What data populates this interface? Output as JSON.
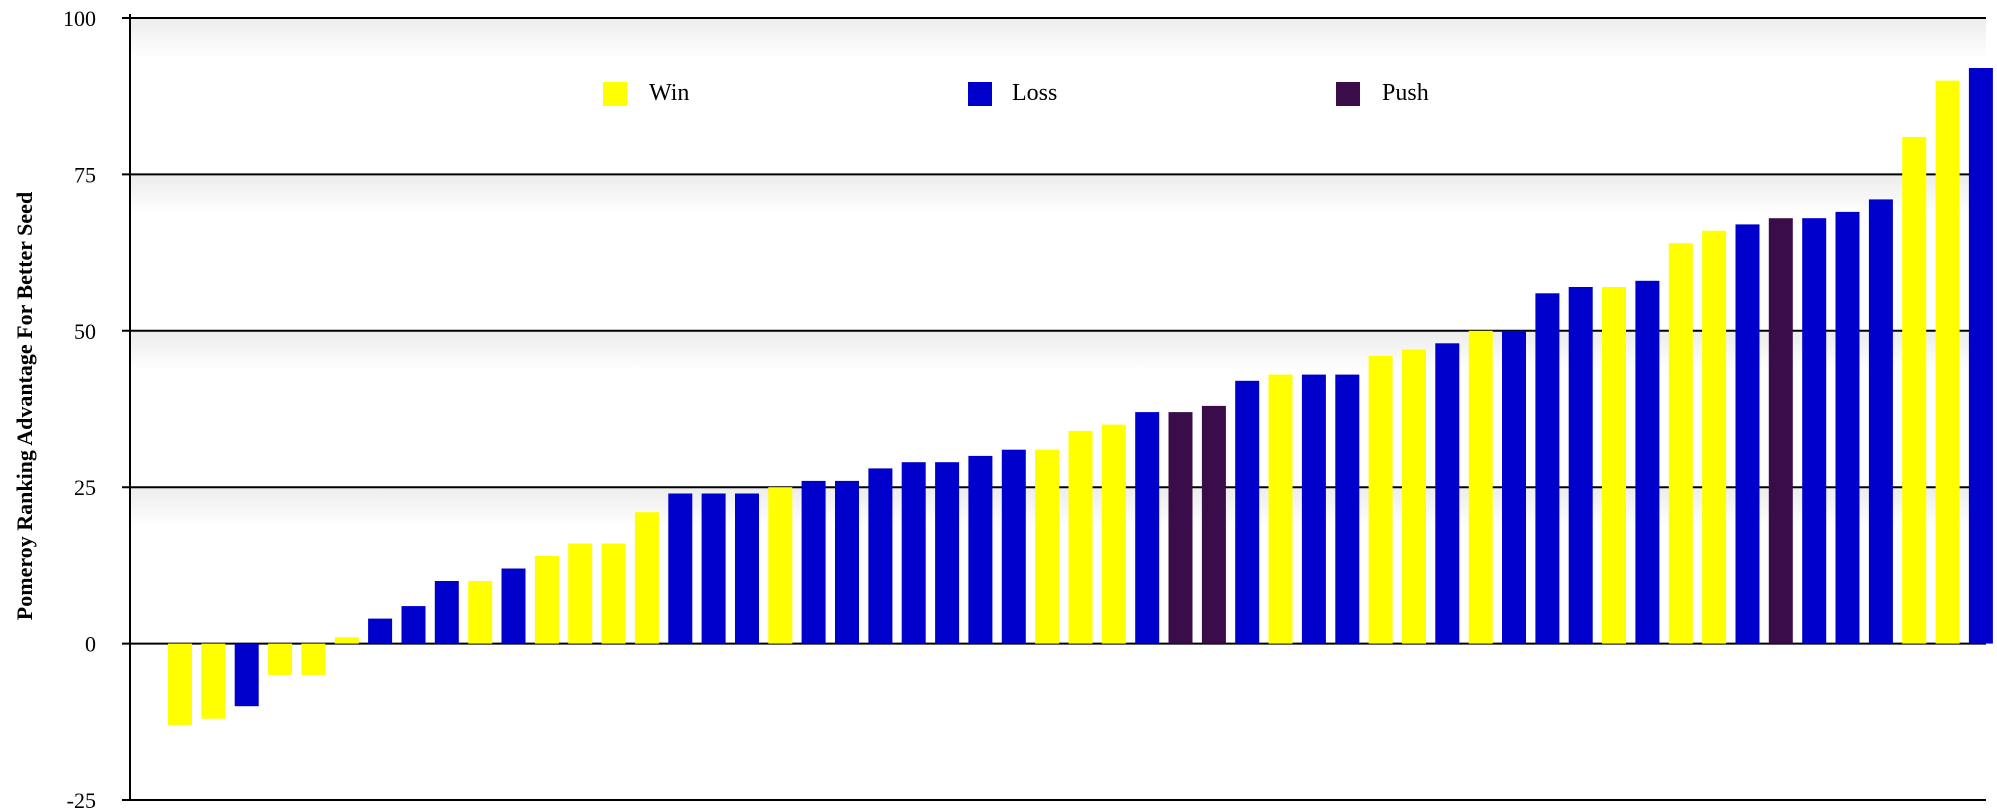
{
  "chart_data": {
    "type": "bar",
    "ylabel": "Pomeroy Ranking Advantage For Better Seed",
    "xlabel": "",
    "ylim": [
      -25,
      100
    ],
    "yticks": [
      -25,
      0,
      25,
      50,
      75,
      100
    ],
    "grid": true,
    "legend_position": "top",
    "legend": [
      {
        "name": "Win",
        "color": "#ffff00"
      },
      {
        "name": "Loss",
        "color": "#0000cc"
      },
      {
        "name": "Push",
        "color": "#3a0d4a"
      }
    ],
    "values": [
      -13,
      -12,
      -10,
      -5,
      -5,
      1,
      4,
      6,
      10,
      10,
      12,
      14,
      16,
      16,
      21,
      24,
      24,
      24,
      25,
      26,
      26,
      28,
      29,
      29,
      30,
      31,
      31,
      34,
      35,
      37,
      37,
      38,
      42,
      43,
      43,
      43,
      46,
      47,
      48,
      50,
      50,
      56,
      57,
      57,
      58,
      64,
      66,
      67,
      68,
      68,
      69,
      71,
      81,
      90,
      92
    ],
    "outcomes": [
      "Win",
      "Win",
      "Loss",
      "Win",
      "Win",
      "Win",
      "Loss",
      "Loss",
      "Loss",
      "Win",
      "Loss",
      "Win",
      "Win",
      "Win",
      "Win",
      "Loss",
      "Loss",
      "Loss",
      "Win",
      "Loss",
      "Loss",
      "Loss",
      "Loss",
      "Loss",
      "Loss",
      "Loss",
      "Win",
      "Win",
      "Win",
      "Loss",
      "Push",
      "Push",
      "Loss",
      "Win",
      "Loss",
      "Loss",
      "Win",
      "Win",
      "Loss",
      "Win",
      "Loss",
      "Loss",
      "Loss",
      "Win",
      "Loss",
      "Win",
      "Win",
      "Loss",
      "Push",
      "Loss",
      "Loss",
      "Loss",
      "Win",
      "Win",
      "Loss"
    ]
  }
}
